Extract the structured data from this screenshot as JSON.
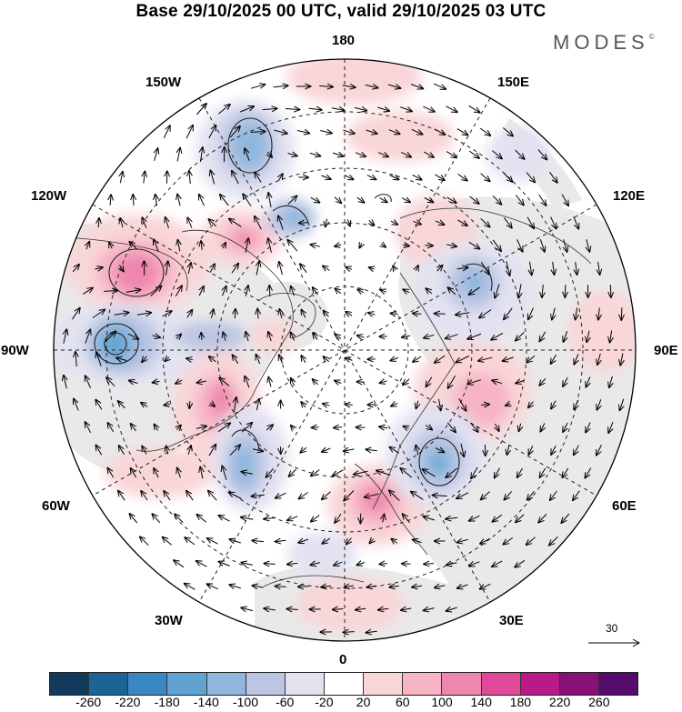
{
  "title": "Base 29/10/2025 00 UTC, valid 29/10/2025 03 UTC",
  "brand": {
    "name": "MODES",
    "mark": "©"
  },
  "map": {
    "projection": "north-polar-stereographic",
    "longitude_labels": {
      "lon_180": "180",
      "lon_150w": "150W",
      "lon_150e": "150E",
      "lon_120w": "120W",
      "lon_120e": "120E",
      "lon_90w": "90W",
      "lon_90e": "90E",
      "lon_60w": "60W",
      "lon_60e": "60E",
      "lon_30w": "30W",
      "lon_30e": "30E",
      "lon_0": "0"
    },
    "vector_scale_label": "30"
  },
  "colorbar": {
    "ticks": [
      "-260",
      "-220",
      "-180",
      "-140",
      "-100",
      "-60",
      "-20",
      "20",
      "60",
      "100",
      "140",
      "180",
      "220",
      "260"
    ],
    "colors": [
      "#123a5c",
      "#1c6496",
      "#3a88c2",
      "#5ea3d2",
      "#8fb7dd",
      "#bcc6e3",
      "#e2e2f1",
      "#ffffff",
      "#f9d6d8",
      "#f6b4c4",
      "#ef86ae",
      "#e0489a",
      "#bb1a86",
      "#891078",
      "#550a6e"
    ]
  }
}
